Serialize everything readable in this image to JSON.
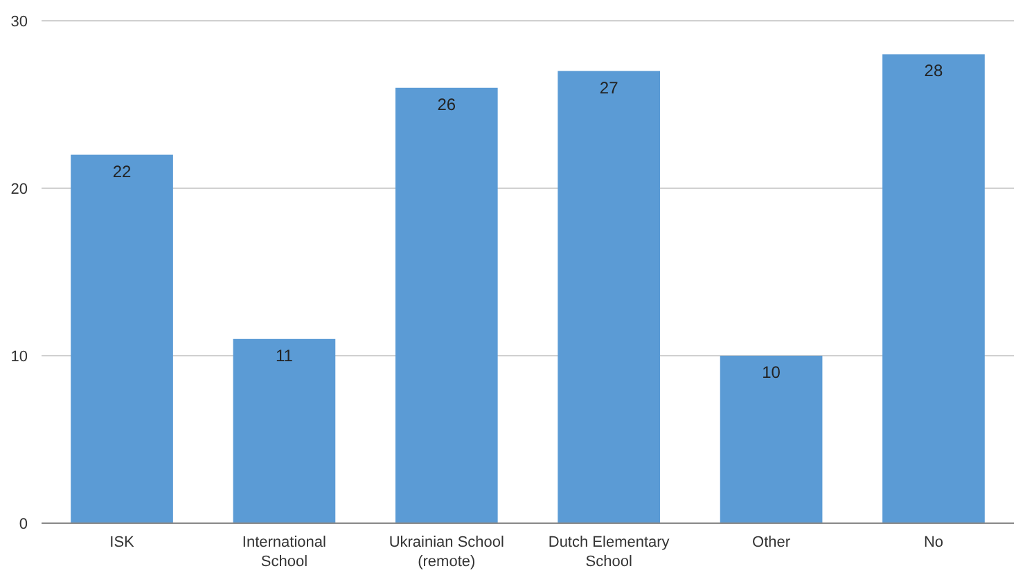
{
  "chart_data": {
    "type": "bar",
    "categories": [
      "ISK",
      "International School",
      "Ukrainian School (remote)",
      "Dutch Elementary School",
      "Other",
      "No"
    ],
    "values": [
      22,
      11,
      26,
      27,
      10,
      28
    ],
    "color": "#5b9bd5",
    "ylim": [
      0,
      30
    ],
    "yticks": [
      0,
      10,
      20,
      30
    ],
    "grid": "y",
    "data_labels": true
  }
}
